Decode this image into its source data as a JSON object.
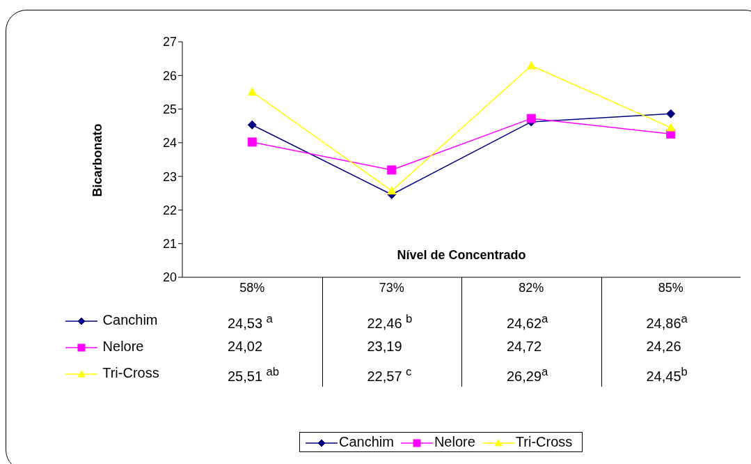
{
  "chart_data": {
    "type": "line",
    "xlabel": "Nível de Concentrado",
    "ylabel": "Bicarbonato",
    "categories": [
      "58%",
      "73%",
      "82%",
      "85%"
    ],
    "ylim": [
      20,
      27
    ],
    "yticks": [
      20,
      21,
      22,
      23,
      24,
      25,
      26,
      27
    ],
    "legend": "bottom",
    "data_labels": true,
    "series": [
      {
        "name": "Canchim",
        "color": "#000080",
        "marker": "diamond",
        "values": [
          24.53,
          22.46,
          24.62,
          24.86
        ],
        "value_labels": [
          "24,53 $^{a}$",
          "22,46 $^{b}$",
          "24,62$^{a}$",
          "24,86$^{a}$"
        ]
      },
      {
        "name": "Nelore",
        "color": "#ff00ff",
        "marker": "square",
        "values": [
          24.02,
          23.19,
          24.72,
          24.26
        ],
        "value_labels": [
          "24,02",
          "23,19",
          "24,72",
          "24,26"
        ]
      },
      {
        "name": "Tri-Cross",
        "color": "#ffff00",
        "marker": "triangle",
        "values": [
          25.51,
          22.57,
          26.29,
          24.45
        ],
        "value_labels": [
          "25,51 $^{ab}$",
          "22,57 $^{c}$",
          "26,29$^{a}$",
          "24,45$^{b}$"
        ]
      }
    ]
  }
}
